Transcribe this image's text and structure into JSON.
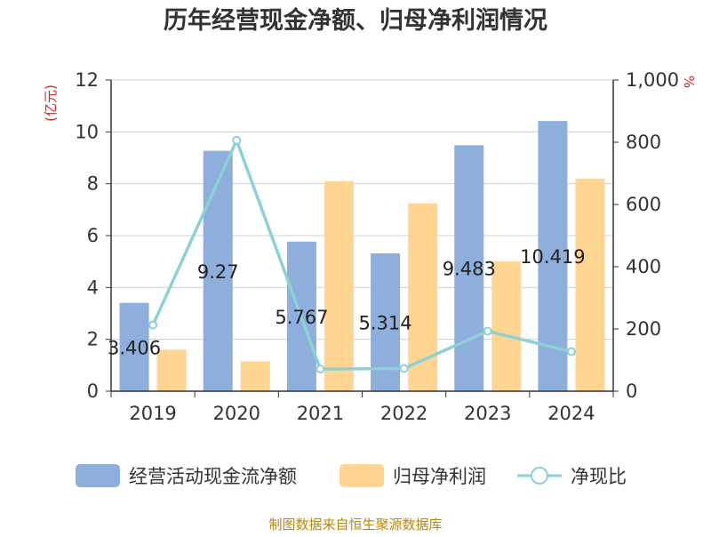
{
  "chart_data": {
    "type": "bar",
    "title": "历年经营现金净额、归母净利润情况",
    "categories": [
      "2019",
      "2020",
      "2021",
      "2022",
      "2023",
      "2024"
    ],
    "series": [
      {
        "name": "经营活动现金流净额",
        "type": "bar",
        "axis": "left",
        "color": "#8eaedb",
        "values": [
          3.406,
          9.27,
          5.767,
          5.314,
          9.483,
          10.419
        ]
      },
      {
        "name": "归母净利润",
        "type": "bar",
        "axis": "left",
        "color": "#ffd591",
        "values": [
          1.6,
          1.15,
          8.1,
          7.25,
          5.0,
          8.2
        ]
      },
      {
        "name": "净现比",
        "type": "line",
        "axis": "right",
        "color": "#8dd1d6",
        "values": [
          213,
          806,
          71,
          73,
          193,
          127
        ]
      }
    ],
    "data_labels": [
      "3.406",
      "9.27",
      "5.767",
      "5.314",
      "9.483",
      "10.419"
    ],
    "y_left": {
      "unit": "(亿元)",
      "ylim": [
        0,
        12
      ],
      "ticks": [
        "0",
        "2",
        "4",
        "6",
        "8",
        "10",
        "12"
      ]
    },
    "y_right": {
      "unit": "%",
      "ylim": [
        0,
        1000
      ],
      "ticks": [
        "0",
        "200",
        "400",
        "600",
        "800",
        "1,000"
      ]
    },
    "grid": true,
    "legend_position": "bottom",
    "source": "制图数据来自恒生聚源数据库"
  }
}
